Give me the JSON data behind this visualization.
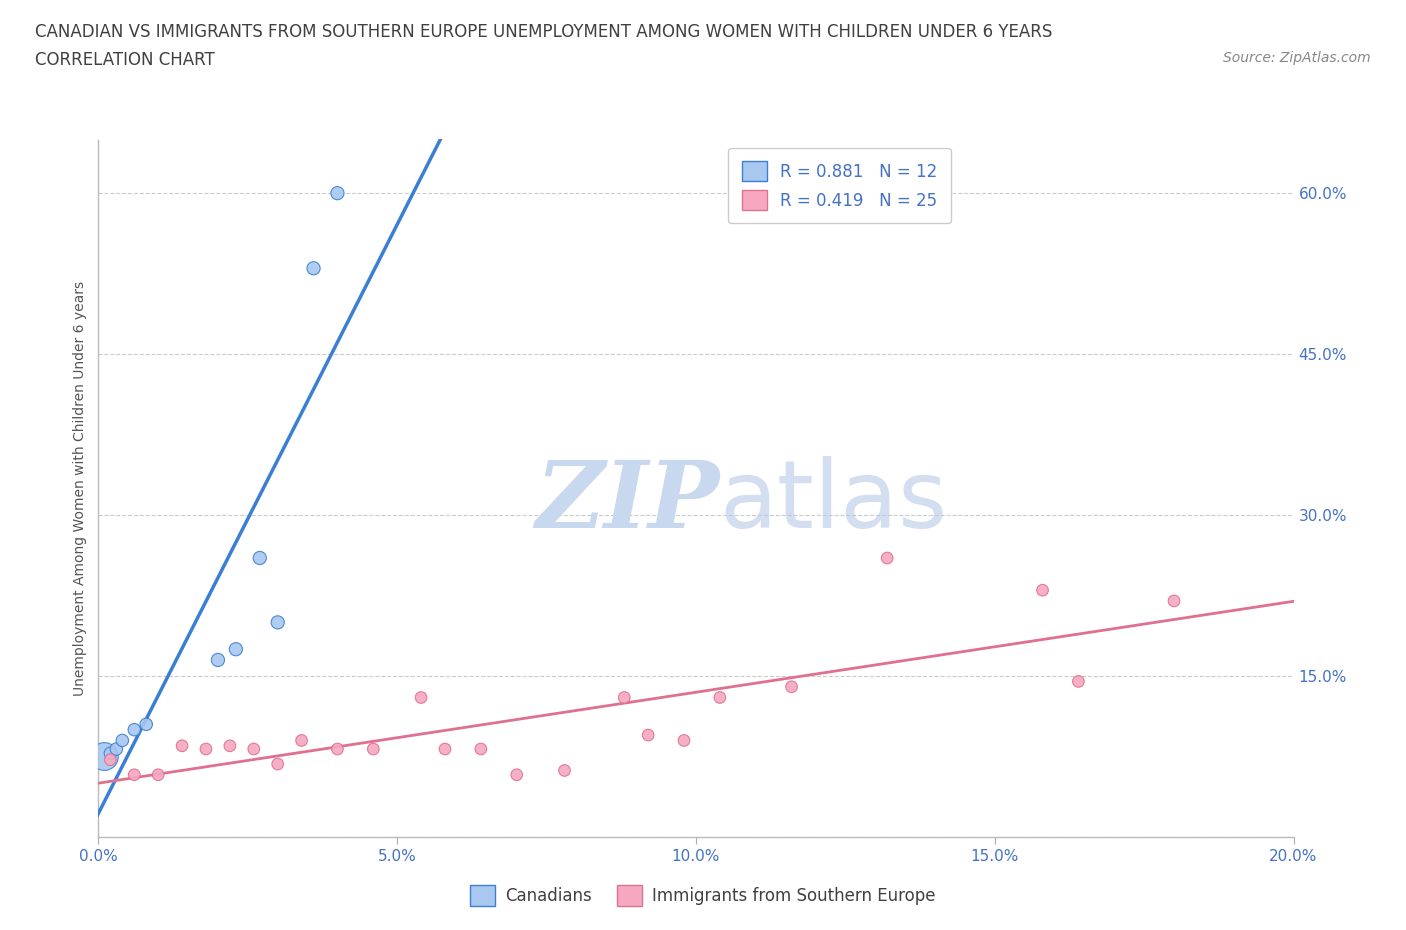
{
  "title_line1": "CANADIAN VS IMMIGRANTS FROM SOUTHERN EUROPE UNEMPLOYMENT AMONG WOMEN WITH CHILDREN UNDER 6 YEARS",
  "title_line2": "CORRELATION CHART",
  "source": "Source: ZipAtlas.com",
  "ylabel": "Unemployment Among Women with Children Under 6 years",
  "xlim": [
    0.0,
    0.2
  ],
  "ylim": [
    0.0,
    0.65
  ],
  "watermark_zip": "ZIP",
  "watermark_atlas": "atlas",
  "canadians_R": "0.881",
  "canadians_N": "12",
  "immigrants_R": "0.419",
  "immigrants_N": "25",
  "canadians_color": "#a8c8f0",
  "canadians_line_color": "#3a7fd5",
  "immigrants_color": "#f5a8c0",
  "immigrants_line_color": "#e07090",
  "background_color": "#ffffff",
  "grid_color": "#cccccc",
  "canadians_x": [
    0.001,
    0.002,
    0.003,
    0.004,
    0.006,
    0.008,
    0.02,
    0.023,
    0.027,
    0.03,
    0.036,
    0.04
  ],
  "canadians_y": [
    0.075,
    0.078,
    0.082,
    0.09,
    0.1,
    0.105,
    0.165,
    0.175,
    0.26,
    0.2,
    0.53,
    0.6
  ],
  "canadians_sizes": [
    400,
    80,
    80,
    80,
    80,
    80,
    90,
    90,
    90,
    90,
    90,
    90
  ],
  "immigrants_x": [
    0.002,
    0.006,
    0.01,
    0.014,
    0.018,
    0.022,
    0.026,
    0.03,
    0.034,
    0.04,
    0.046,
    0.054,
    0.058,
    0.064,
    0.07,
    0.078,
    0.088,
    0.092,
    0.098,
    0.104,
    0.116,
    0.132,
    0.158,
    0.164,
    0.18
  ],
  "immigrants_y": [
    0.072,
    0.058,
    0.058,
    0.085,
    0.082,
    0.085,
    0.082,
    0.068,
    0.09,
    0.082,
    0.082,
    0.13,
    0.082,
    0.082,
    0.058,
    0.062,
    0.13,
    0.095,
    0.09,
    0.13,
    0.14,
    0.26,
    0.23,
    0.145,
    0.22
  ],
  "immigrants_sizes": [
    70,
    70,
    70,
    70,
    70,
    70,
    70,
    70,
    70,
    70,
    70,
    70,
    70,
    70,
    70,
    70,
    70,
    70,
    70,
    70,
    70,
    70,
    70,
    70,
    70
  ],
  "title_fontsize": 12,
  "subtitle_fontsize": 12,
  "axis_label_fontsize": 10,
  "tick_fontsize": 11,
  "legend_fontsize": 12,
  "source_fontsize": 10,
  "axis_color": "#4472c4",
  "title_color": "#404040"
}
